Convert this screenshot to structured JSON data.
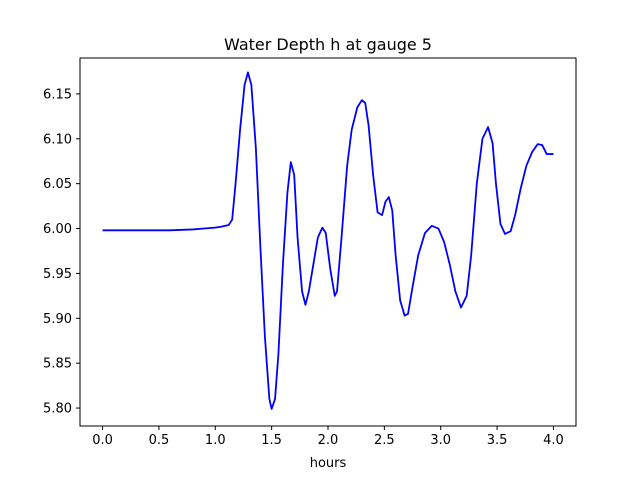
{
  "chart_data": {
    "type": "line",
    "title": "Water Depth h at gauge 5",
    "xlabel": "hours",
    "ylabel": "",
    "xlim": [
      -0.2,
      4.2
    ],
    "ylim": [
      5.78,
      6.19
    ],
    "grid": false,
    "x_ticks": [
      "0.0",
      "0.5",
      "1.0",
      "1.5",
      "2.0",
      "2.5",
      "3.0",
      "3.5",
      "4.0"
    ],
    "y_ticks": [
      "5.80",
      "5.85",
      "5.90",
      "5.95",
      "6.00",
      "6.05",
      "6.10",
      "6.15"
    ],
    "series": [
      {
        "color": "#0000ff",
        "x": [
          0.0,
          0.2,
          0.4,
          0.6,
          0.8,
          0.9,
          1.0,
          1.05,
          1.12,
          1.15,
          1.18,
          1.22,
          1.26,
          1.29,
          1.32,
          1.36,
          1.4,
          1.44,
          1.48,
          1.5,
          1.53,
          1.56,
          1.6,
          1.64,
          1.67,
          1.7,
          1.73,
          1.77,
          1.8,
          1.83,
          1.87,
          1.91,
          1.95,
          1.98,
          2.02,
          2.06,
          2.08,
          2.12,
          2.17,
          2.21,
          2.26,
          2.3,
          2.33,
          2.36,
          2.4,
          2.44,
          2.48,
          2.51,
          2.54,
          2.57,
          2.6,
          2.64,
          2.68,
          2.71,
          2.75,
          2.8,
          2.86,
          2.92,
          2.98,
          3.03,
          3.08,
          3.13,
          3.18,
          3.23,
          3.27,
          3.32,
          3.37,
          3.42,
          3.46,
          3.49,
          3.53,
          3.57,
          3.62,
          3.66,
          3.71,
          3.76,
          3.81,
          3.86,
          3.9,
          3.94,
          3.97,
          4.0
        ],
        "y": [
          5.998,
          5.998,
          5.998,
          5.998,
          5.999,
          6.0,
          6.001,
          6.002,
          6.004,
          6.01,
          6.05,
          6.11,
          6.16,
          6.174,
          6.16,
          6.09,
          5.98,
          5.88,
          5.81,
          5.799,
          5.81,
          5.86,
          5.96,
          6.04,
          6.074,
          6.06,
          5.99,
          5.93,
          5.915,
          5.93,
          5.96,
          5.99,
          6.001,
          5.995,
          5.955,
          5.925,
          5.93,
          5.99,
          6.07,
          6.11,
          6.135,
          6.143,
          6.14,
          6.115,
          6.06,
          6.018,
          6.015,
          6.03,
          6.035,
          6.02,
          5.97,
          5.92,
          5.903,
          5.905,
          5.935,
          5.97,
          5.995,
          6.003,
          6.0,
          5.985,
          5.96,
          5.93,
          5.912,
          5.925,
          5.97,
          6.05,
          6.1,
          6.113,
          6.095,
          6.05,
          6.005,
          5.994,
          5.997,
          6.015,
          6.045,
          6.07,
          6.085,
          6.094,
          6.093,
          6.083,
          6.083,
          6.083
        ]
      }
    ]
  }
}
